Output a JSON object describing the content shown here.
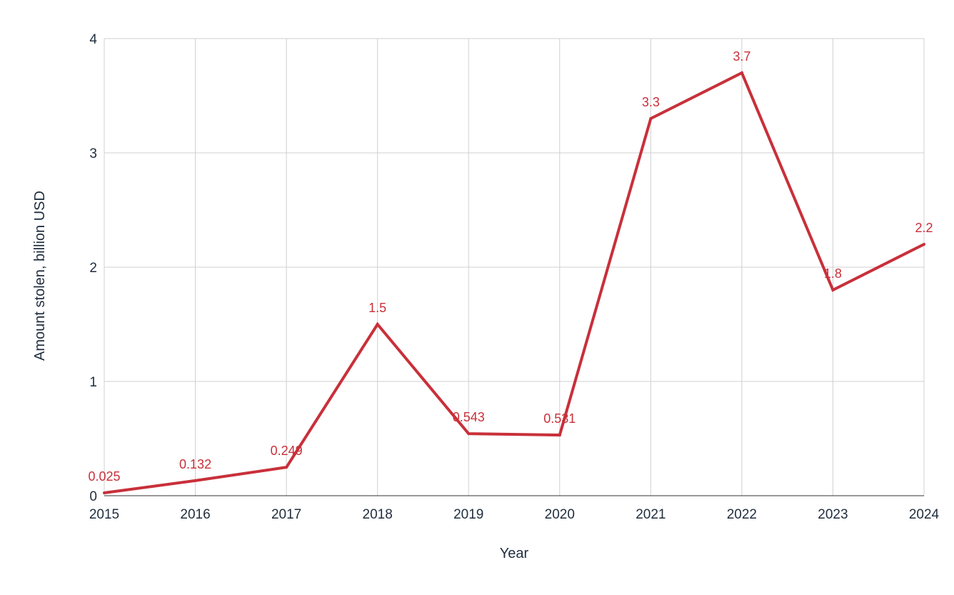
{
  "chart_data": {
    "type": "line",
    "title": "",
    "xlabel": "Year",
    "ylabel": "Amount stolen, billion USD",
    "x": [
      "2015",
      "2016",
      "2017",
      "2018",
      "2019",
      "2020",
      "2021",
      "2022",
      "2023",
      "2024"
    ],
    "series": [
      {
        "values": [
          0.025,
          0.132,
          0.249,
          1.5,
          0.543,
          0.531,
          3.3,
          3.7,
          1.8,
          2.2
        ],
        "labels": [
          "0.025",
          "0.132",
          "0.249",
          "1.5",
          "0.543",
          "0.531",
          "3.3",
          "3.7",
          "1.8",
          "2.2"
        ]
      }
    ],
    "ylim": [
      0,
      4
    ],
    "yticks": [
      "0",
      "1",
      "2",
      "3",
      "4"
    ],
    "grid": true,
    "legend": "none",
    "colors": {
      "line": "#c8303a",
      "label": "#c8303a"
    }
  }
}
